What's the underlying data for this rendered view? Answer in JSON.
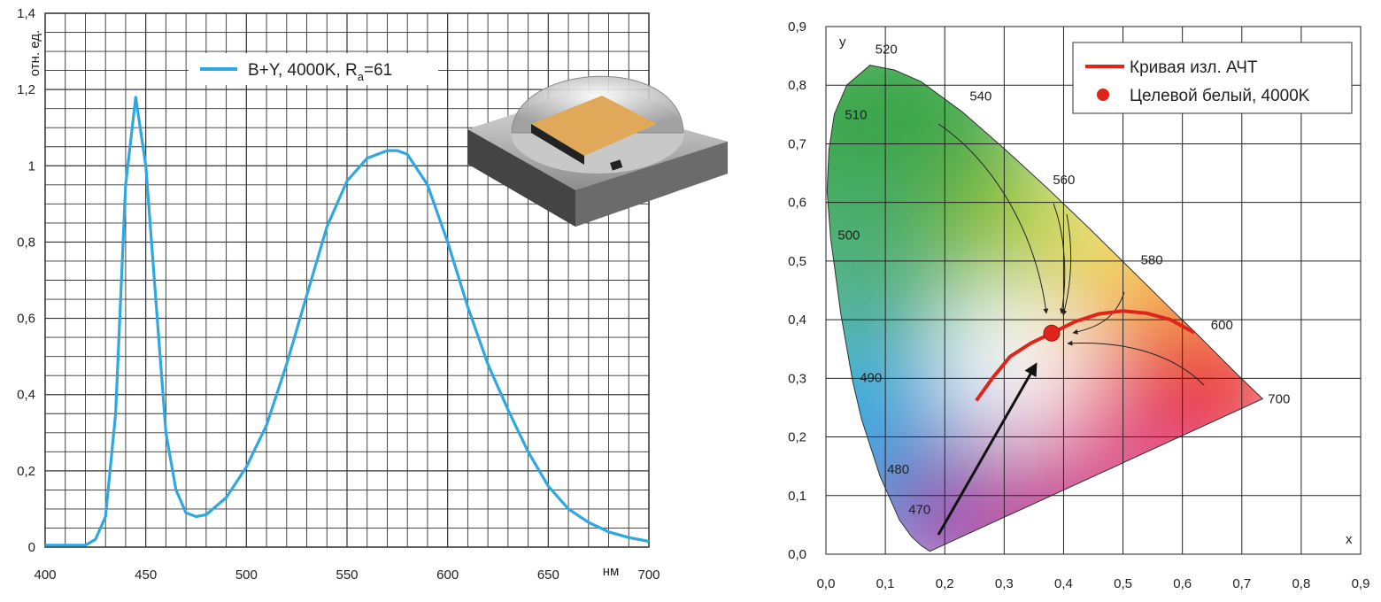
{
  "chart_data": [
    {
      "type": "line",
      "xlabel": "нм",
      "ylabel": "отн. ед.",
      "xlim": [
        400,
        700
      ],
      "ylim": [
        0,
        1.4
      ],
      "x_ticks": [
        "400",
        "450",
        "500",
        "550",
        "600",
        "650",
        "700"
      ],
      "y_ticks": [
        "0",
        "0,2",
        "0,4",
        "0,6",
        "0,8",
        "1",
        "1,2",
        "1,4"
      ],
      "grid": true,
      "legend_position": "top-center",
      "series": [
        {
          "name": "B+Y, 4000K, R=61",
          "name_parts": {
            "main": "B+Y, 4000K, R",
            "sub": "a",
            "tail": "=61"
          },
          "color": "#2fa8e0",
          "x": [
            400,
            410,
            420,
            425,
            430,
            435,
            440,
            445,
            450,
            455,
            460,
            465,
            470,
            475,
            480,
            490,
            500,
            510,
            520,
            530,
            540,
            550,
            560,
            570,
            575,
            580,
            590,
            600,
            610,
            620,
            630,
            640,
            650,
            660,
            670,
            680,
            690,
            700
          ],
          "y": [
            0.005,
            0.005,
            0.005,
            0.02,
            0.08,
            0.35,
            0.95,
            1.18,
            1.0,
            0.65,
            0.3,
            0.15,
            0.09,
            0.08,
            0.085,
            0.13,
            0.21,
            0.32,
            0.48,
            0.66,
            0.84,
            0.96,
            1.02,
            1.04,
            1.04,
            1.03,
            0.95,
            0.8,
            0.63,
            0.48,
            0.36,
            0.25,
            0.16,
            0.1,
            0.065,
            0.04,
            0.025,
            0.015
          ]
        }
      ]
    },
    {
      "type": "scatter",
      "xlabel": "x",
      "ylabel": "y",
      "xlim": [
        0,
        0.9
      ],
      "ylim": [
        0,
        0.9
      ],
      "x_ticks": [
        "0,0",
        "0,1",
        "0,2",
        "0,3",
        "0,4",
        "0,5",
        "0,6",
        "0,7",
        "0,8",
        "0,9"
      ],
      "y_ticks": [
        "0,0",
        "0,1",
        "0,2",
        "0,3",
        "0,4",
        "0,5",
        "0,6",
        "0,7",
        "0,8",
        "0,9"
      ],
      "grid": true,
      "legend_position": "top-right",
      "spectral_locus": [
        {
          "label": "470",
          "x": 0.124,
          "y": 0.058
        },
        {
          "label": "480",
          "x": 0.091,
          "y": 0.133
        },
        {
          "label": "490",
          "x": 0.045,
          "y": 0.295
        },
        {
          "label": "500",
          "x": 0.008,
          "y": 0.538
        },
        {
          "label": "510",
          "x": 0.014,
          "y": 0.75
        },
        {
          "label": "520",
          "x": 0.074,
          "y": 0.834
        },
        {
          "label": "540",
          "x": 0.23,
          "y": 0.754
        },
        {
          "label": "560",
          "x": 0.373,
          "y": 0.624
        },
        {
          "label": "580",
          "x": 0.512,
          "y": 0.487
        },
        {
          "label": "600",
          "x": 0.627,
          "y": 0.373
        },
        {
          "label": "700",
          "x": 0.735,
          "y": 0.265
        }
      ],
      "series": [
        {
          "name": "Кривая изл. АЧТ",
          "color": "#e2231a",
          "x": [
            0.253,
            0.28,
            0.31,
            0.345,
            0.38,
            0.42,
            0.46,
            0.5,
            0.54,
            0.58,
            0.62
          ],
          "y": [
            0.262,
            0.3,
            0.337,
            0.36,
            0.377,
            0.397,
            0.41,
            0.415,
            0.411,
            0.4,
            0.378
          ]
        },
        {
          "name": "Целевой белый, 4000K",
          "color": "#e2231a",
          "x": [
            0.38
          ],
          "y": [
            0.377
          ]
        }
      ]
    }
  ]
}
